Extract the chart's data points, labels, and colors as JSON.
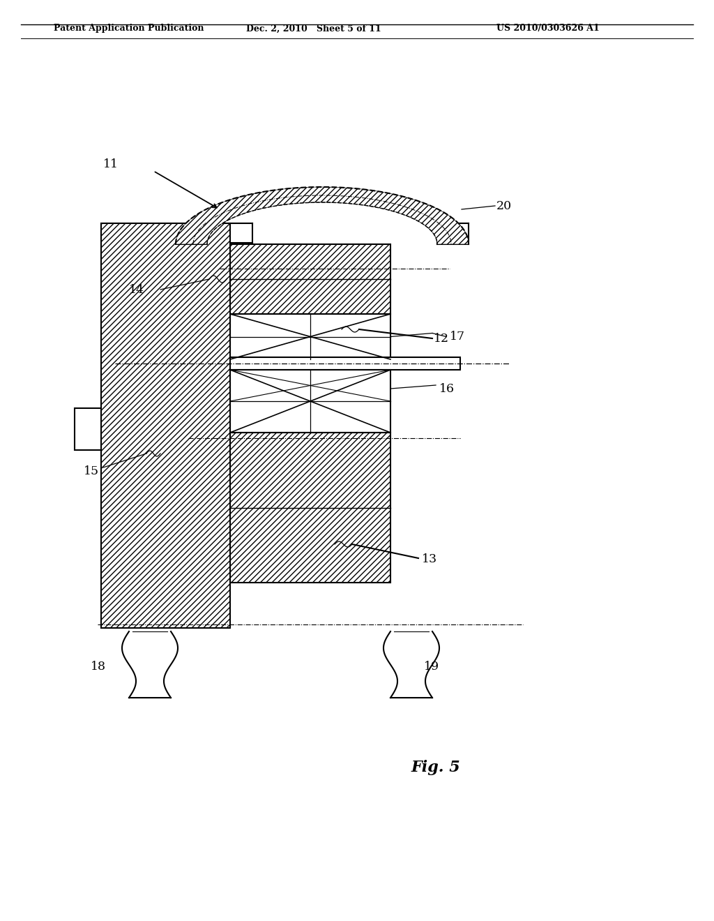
{
  "header_left": "Patent Application Publication",
  "header_mid": "Dec. 2, 2010   Sheet 5 of 11",
  "header_right": "US 2010/0303626 A1",
  "fig_label": "Fig. 5",
  "background": "#ffffff",
  "line_color": "#000000"
}
